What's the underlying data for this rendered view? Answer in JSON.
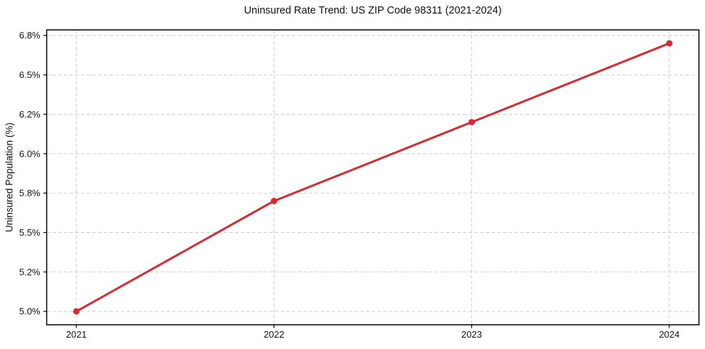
{
  "figure": {
    "background": "#ffffff"
  },
  "chart_data": {
    "type": "line",
    "title": "Uninsured Rate Trend: US ZIP Code 98311 (2021-2024)",
    "xlabel": "",
    "ylabel": "Uninsured Population (%)",
    "x": [
      2021,
      2022,
      2023,
      2024
    ],
    "x_tick_labels": [
      "2021",
      "2022",
      "2023",
      "2024"
    ],
    "series": [
      {
        "values": [
          5.0,
          5.7,
          6.2,
          6.7
        ],
        "color": "#d62b35",
        "marker": "circle"
      }
    ],
    "y_ticks": [
      5.0,
      5.25,
      5.5,
      5.75,
      6.0,
      6.25,
      6.5,
      6.75
    ],
    "y_tick_labels": [
      "5.0%",
      "5.2%",
      "5.5%",
      "5.8%",
      "6.0%",
      "6.2%",
      "6.5%",
      "6.8%"
    ],
    "xlim": [
      2020.85,
      2024.15
    ],
    "ylim": [
      4.915,
      6.785
    ],
    "grid": {
      "show": true,
      "style": "dashed",
      "color": "#cfcfcf"
    },
    "legend": {
      "show": false
    },
    "spine_color": "#000000",
    "tick_color": "#000000"
  }
}
